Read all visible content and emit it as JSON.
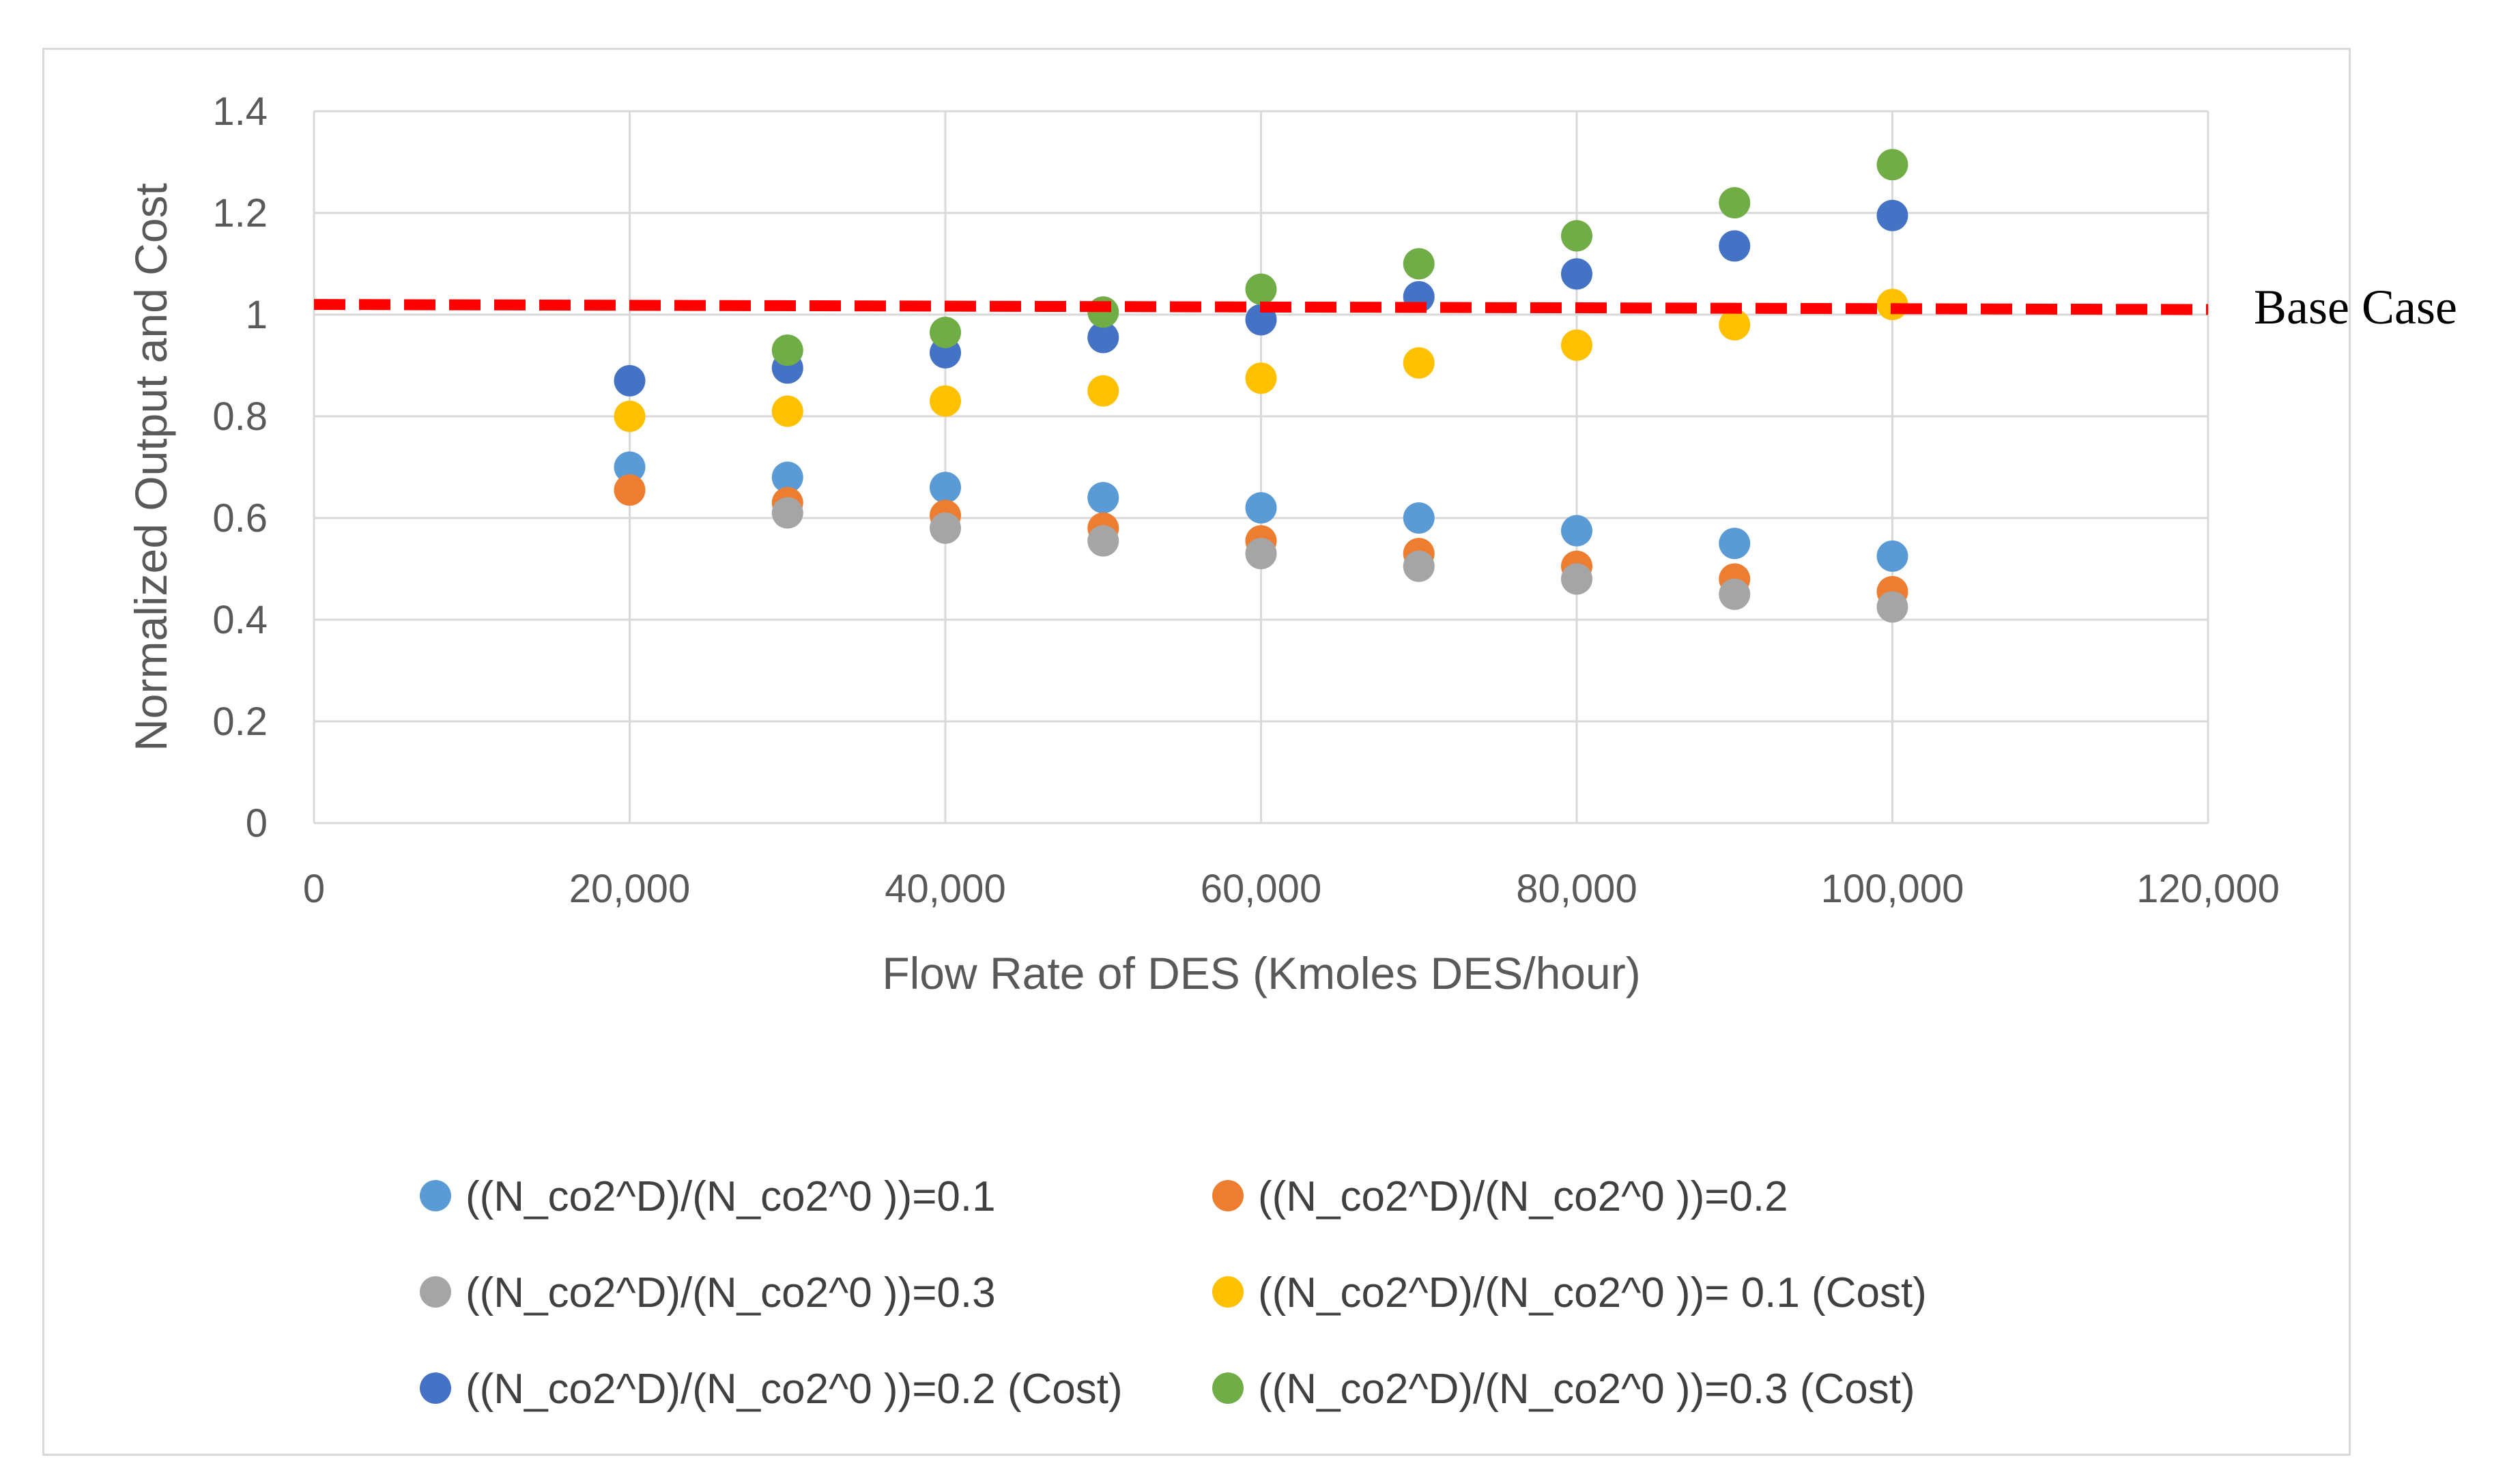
{
  "chart_data": {
    "type": "scatter",
    "title": "",
    "xlabel": "Flow Rate of DES (Kmoles DES/hour)",
    "ylabel": "Normalized Output and Cost",
    "xlim": [
      0,
      120000
    ],
    "ylim": [
      0,
      1.4
    ],
    "grid": true,
    "legend_position": "bottom",
    "x_ticks": [
      0,
      20000,
      40000,
      60000,
      80000,
      100000,
      120000
    ],
    "x_tick_labels": [
      "0",
      "20,000",
      "40,000",
      "60,000",
      "80,000",
      "100,000",
      "120,000"
    ],
    "y_ticks": [
      0,
      0.2,
      0.4,
      0.6,
      0.8,
      1,
      1.2,
      1.4
    ],
    "y_tick_labels": [
      "0",
      "0.2",
      "0.4",
      "0.6",
      "0.8",
      "1",
      "1.2",
      "1.4"
    ],
    "series": [
      {
        "name": "((N_co2^D)/(N_co2^0 ))=0.1",
        "color": "#5b9bd5",
        "x": [
          20000,
          30000,
          40000,
          50000,
          60000,
          70000,
          80000,
          90000,
          100000
        ],
        "y": [
          0.7,
          0.68,
          0.66,
          0.64,
          0.62,
          0.6,
          0.575,
          0.55,
          0.525
        ]
      },
      {
        "name": "((N_co2^D)/(N_co2^0 ))=0.2",
        "color": "#ed7d31",
        "x": [
          20000,
          30000,
          40000,
          50000,
          60000,
          70000,
          80000,
          90000,
          100000
        ],
        "y": [
          0.655,
          0.63,
          0.605,
          0.58,
          0.555,
          0.53,
          0.505,
          0.48,
          0.455
        ]
      },
      {
        "name": "((N_co2^D)/(N_co2^0 ))=0.3",
        "color": "#a5a5a5",
        "x": [
          30000,
          40000,
          50000,
          60000,
          70000,
          80000,
          90000,
          100000
        ],
        "y": [
          0.61,
          0.58,
          0.555,
          0.53,
          0.505,
          0.48,
          0.45,
          0.425
        ]
      },
      {
        "name": "((N_co2^D)/(N_co2^0 ))= 0.1 (Cost)",
        "color": "#ffc000",
        "x": [
          20000,
          30000,
          40000,
          50000,
          60000,
          70000,
          80000,
          90000,
          100000
        ],
        "y": [
          0.8,
          0.81,
          0.83,
          0.85,
          0.875,
          0.905,
          0.94,
          0.98,
          1.02
        ]
      },
      {
        "name": "((N_co2^D)/(N_co2^0 ))=0.2 (Cost)",
        "color": "#4472c4",
        "x": [
          20000,
          30000,
          40000,
          50000,
          60000,
          70000,
          80000,
          90000,
          100000
        ],
        "y": [
          0.87,
          0.895,
          0.925,
          0.955,
          0.99,
          1.035,
          1.08,
          1.135,
          1.195
        ]
      },
      {
        "name": "((N_co2^D)/(N_co2^0 ))=0.3 (Cost)",
        "color": "#70ad47",
        "x": [
          30000,
          40000,
          50000,
          60000,
          70000,
          80000,
          90000,
          100000
        ],
        "y": [
          0.93,
          0.965,
          1.005,
          1.05,
          1.1,
          1.155,
          1.22,
          1.295
        ]
      }
    ],
    "baseline": {
      "label": "Base Case",
      "y_start": 1.02,
      "y_end": 1.01,
      "color": "#ff0000"
    }
  }
}
